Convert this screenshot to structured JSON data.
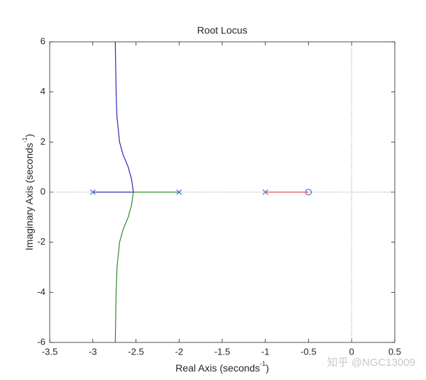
{
  "chart_data": {
    "type": "root-locus",
    "title": "Root Locus",
    "xlabel": [
      "Real Axis (seconds",
      "-1",
      ")"
    ],
    "ylabel": [
      "Imaginary Axis (seconds",
      "-1",
      ")"
    ],
    "xlim": [
      -3.5,
      0.5
    ],
    "xticks": [
      -3.5,
      -3,
      -2.5,
      -2,
      -1.5,
      -1,
      -0.5,
      0,
      0.5
    ],
    "ylim": [
      -6,
      6
    ],
    "yticks": [
      -6,
      -4,
      -2,
      0,
      2,
      4,
      6
    ],
    "reference_lines": {
      "x": 0,
      "y": 0
    },
    "series": [
      {
        "color": "#2a2ab8",
        "x": [
          -3,
          -2.53,
          -2.55,
          -2.59,
          -2.65,
          -2.69,
          -2.72,
          -2.73,
          -2.74
        ],
        "y": [
          0,
          0,
          0.5,
          1,
          1.5,
          2,
          3,
          4,
          6
        ]
      },
      {
        "color": "#2e8b2e",
        "x": [
          -2,
          -2.53,
          -2.55,
          -2.59,
          -2.65,
          -2.69,
          -2.72,
          -2.73,
          -2.74
        ],
        "y": [
          0,
          0,
          -0.5,
          -1,
          -1.5,
          -2,
          -3,
          -4,
          -6
        ]
      },
      {
        "color": "#e05050",
        "x": [
          -1,
          -0.5
        ],
        "y": [
          0,
          0
        ]
      }
    ],
    "poles": {
      "color": "#3566c4",
      "x": [
        -3,
        -2,
        -1
      ],
      "y": [
        0,
        0,
        0
      ]
    },
    "zeros": {
      "color": "#3566c4",
      "x": [
        -0.5
      ],
      "y": [
        0
      ]
    },
    "watermark": "知乎 @NGC13009"
  }
}
